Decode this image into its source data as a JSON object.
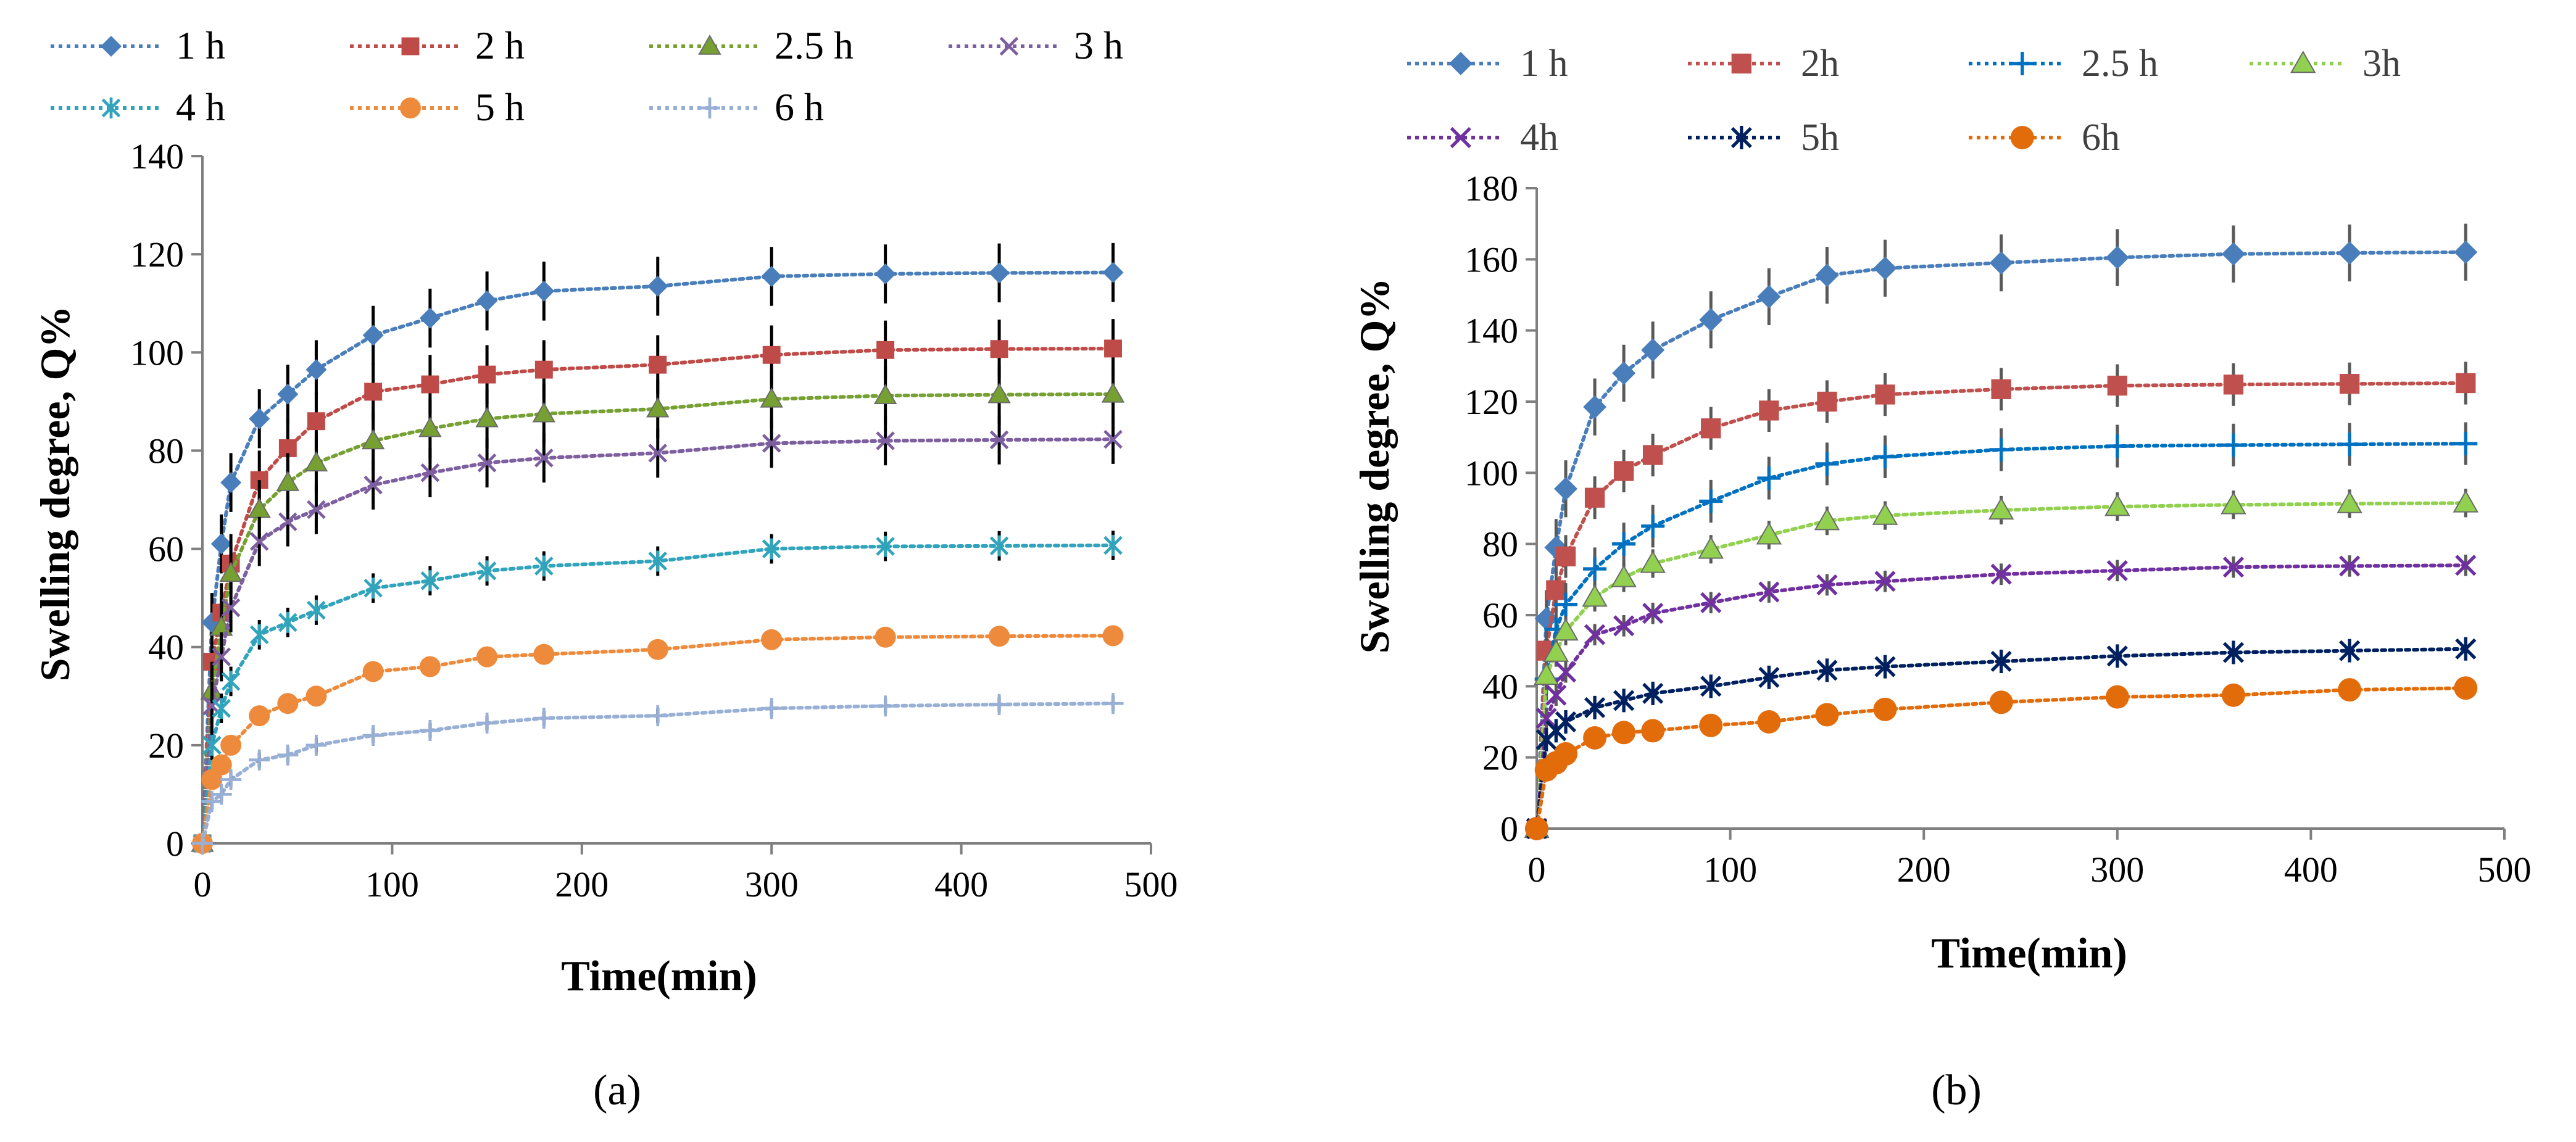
{
  "colors": {
    "axis": "#7f7f7f",
    "error_bar_a": "#000000",
    "error_bar_b": "#595959",
    "text": "#000000",
    "legend_text_b": "#404040"
  },
  "chart_data": [
    {
      "panel": "(a)",
      "type": "line",
      "xlabel": "Time(min)",
      "ylabel": "Swelling degree, Q%",
      "xlim": [
        0,
        500
      ],
      "ylim": [
        0,
        140
      ],
      "xticks": [
        "0",
        "100",
        "200",
        "300",
        "400",
        "500"
      ],
      "yticks": [
        "0",
        "20",
        "40",
        "60",
        "80",
        "100",
        "120",
        "140"
      ],
      "legend_position": "top",
      "x": [
        0,
        5,
        10,
        15,
        30,
        45,
        60,
        90,
        120,
        150,
        180,
        240,
        300,
        360,
        420,
        480
      ],
      "series": [
        {
          "name": "1 h",
          "marker": "diamond",
          "color": "#4a7ebb",
          "values": [
            0,
            45,
            61,
            73.5,
            86.5,
            91.5,
            96.5,
            103.5,
            107,
            110.5,
            112.5,
            113.5,
            115.5,
            116,
            116.2,
            116.3
          ],
          "error": 6
        },
        {
          "name": "2 h",
          "marker": "square",
          "color": "#be4b48",
          "values": [
            0,
            37,
            47,
            57,
            74,
            80.5,
            86,
            92,
            93.5,
            95.5,
            96.5,
            97.5,
            99.5,
            100.5,
            100.7,
            100.8
          ],
          "error": 6
        },
        {
          "name": "2.5 h",
          "marker": "triangle",
          "color": "#77a033",
          "values": [
            0,
            31,
            44,
            55,
            68,
            73.5,
            77.5,
            82,
            84.5,
            86.5,
            87.5,
            88.5,
            90.5,
            91.2,
            91.4,
            91.5
          ],
          "error": 6
        },
        {
          "name": "3 h",
          "marker": "x",
          "color": "#7d5fa0",
          "values": [
            0,
            28,
            38,
            48,
            61.5,
            65.5,
            68,
            73,
            75.5,
            77.5,
            78.5,
            79.5,
            81.5,
            82,
            82.2,
            82.3
          ],
          "error": 5
        },
        {
          "name": "4 h",
          "marker": "star",
          "color": "#31a4bb",
          "values": [
            0,
            20,
            27.5,
            33,
            42.5,
            45,
            47.5,
            52,
            53.5,
            55.5,
            56.5,
            57.5,
            60,
            60.5,
            60.6,
            60.7
          ],
          "error": 3
        },
        {
          "name": "5 h",
          "marker": "circle",
          "color": "#ed8a3b",
          "values": [
            0,
            13,
            16,
            20,
            26,
            28.5,
            30,
            35,
            36,
            38,
            38.5,
            39.5,
            41.5,
            42,
            42.2,
            42.3
          ],
          "error": 1.5
        },
        {
          "name": "6 h",
          "marker": "plus",
          "color": "#98afd6",
          "values": [
            0,
            8.5,
            10,
            13,
            17,
            18,
            20,
            22,
            23,
            24.5,
            25.5,
            26,
            27.5,
            28,
            28.3,
            28.5
          ],
          "error": 1.5
        }
      ]
    },
    {
      "panel": "(b)",
      "type": "line",
      "xlabel": "Time(min)",
      "ylabel": "Swelling degree, Q%",
      "xlim": [
        0,
        500
      ],
      "ylim": [
        0,
        180
      ],
      "xticks": [
        "0",
        "100",
        "200",
        "300",
        "400",
        "500"
      ],
      "yticks": [
        "0",
        "20",
        "40",
        "60",
        "80",
        "100",
        "120",
        "140",
        "160",
        "180"
      ],
      "legend_position": "top",
      "x": [
        0,
        5,
        10,
        15,
        30,
        45,
        60,
        90,
        120,
        150,
        180,
        240,
        300,
        360,
        420,
        480
      ],
      "series": [
        {
          "name": "1 h",
          "marker": "diamond",
          "color": "#4a7ebb",
          "values": [
            0,
            59,
            79,
            95.5,
            118.5,
            128,
            134.5,
            143,
            149.5,
            155.5,
            157.5,
            159,
            160.5,
            161.5,
            161.8,
            162
          ],
          "error": 8
        },
        {
          "name": "2h",
          "marker": "square",
          "color": "#c0504d",
          "values": [
            0,
            50,
            67,
            76.5,
            93,
            100.5,
            105,
            112.5,
            117.5,
            120,
            122,
            123.5,
            124.5,
            124.8,
            125,
            125.2
          ],
          "error": 6
        },
        {
          "name": "2.5 h",
          "marker": "plus",
          "color": "#0070c0",
          "values": [
            0,
            42,
            56,
            63,
            73,
            80,
            85,
            92,
            98.5,
            102.5,
            104.5,
            106.5,
            107.5,
            107.8,
            108,
            108.2
          ],
          "error": 6
        },
        {
          "name": "3h",
          "marker": "triangle",
          "color": "#92d050",
          "values": [
            0,
            43,
            49.5,
            55.5,
            65,
            70.5,
            74.5,
            78.5,
            82.5,
            86.5,
            88,
            89.5,
            90.5,
            91,
            91.3,
            91.5
          ],
          "error": 4
        },
        {
          "name": "4h",
          "marker": "x",
          "color": "#7030a0",
          "values": [
            0,
            31,
            37.5,
            44,
            54.5,
            57,
            60.5,
            63.5,
            66.5,
            68.5,
            69.5,
            71.5,
            72.5,
            73.5,
            73.8,
            74
          ],
          "error": 3
        },
        {
          "name": "5h",
          "marker": "star",
          "color": "#002060",
          "values": [
            0,
            25,
            27.5,
            30,
            34,
            36,
            38,
            40,
            42.5,
            44.5,
            45.5,
            47,
            48.5,
            49.5,
            50,
            50.5
          ],
          "error": 2
        },
        {
          "name": "6h",
          "marker": "circle",
          "color": "#e36c0a",
          "values": [
            0,
            16.5,
            18.5,
            21,
            25.5,
            27,
            27.5,
            29,
            30,
            32,
            33.5,
            35.5,
            37,
            37.5,
            39,
            39.5
          ],
          "error": 1.5
        }
      ]
    }
  ]
}
